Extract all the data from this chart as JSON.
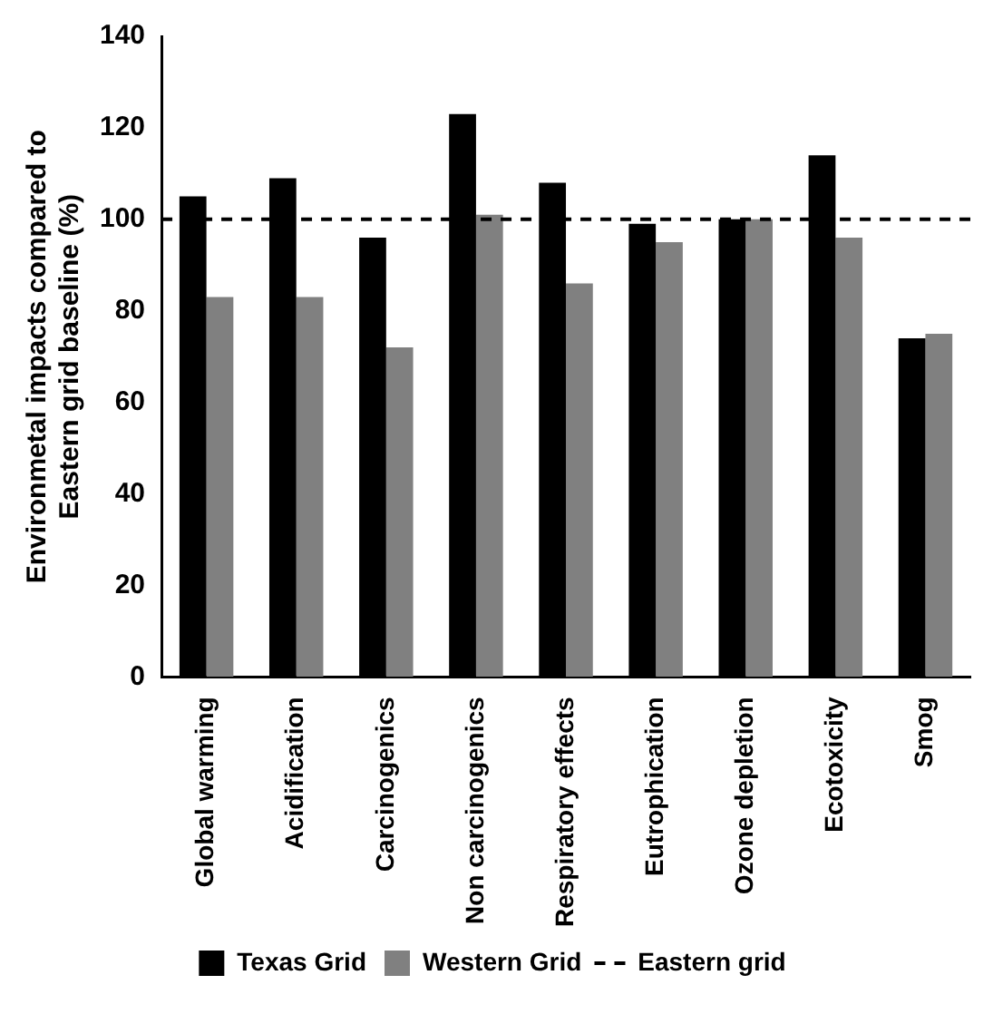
{
  "chart_data": {
    "type": "bar",
    "ylabel": "Environmetal impacts compared to\nEastern grid baseline (%)",
    "categories": [
      "Global warming",
      "Acidification",
      "Carcinogenics",
      "Non carcinogenics",
      "Respiratory effects",
      "Eutrophication",
      "Ozone depletion",
      "Ecotoxicity",
      "Smog"
    ],
    "series": [
      {
        "name": "Texas Grid",
        "color": "#000000",
        "values": [
          105,
          109,
          96,
          123,
          108,
          99,
          100,
          114,
          74
        ]
      },
      {
        "name": "Western Grid",
        "color": "#808080",
        "values": [
          83,
          83,
          72,
          101,
          86,
          95,
          100,
          96,
          75
        ]
      }
    ],
    "ylim": [
      0,
      140
    ],
    "yticks": [
      0,
      20,
      40,
      60,
      80,
      100,
      120,
      140
    ],
    "grid": false,
    "legend": "bottom",
    "ref_lines": [
      {
        "axis": "y",
        "value": 100,
        "label": "Eastern grid",
        "color": "#000000",
        "line_style": "dashed"
      }
    ]
  }
}
